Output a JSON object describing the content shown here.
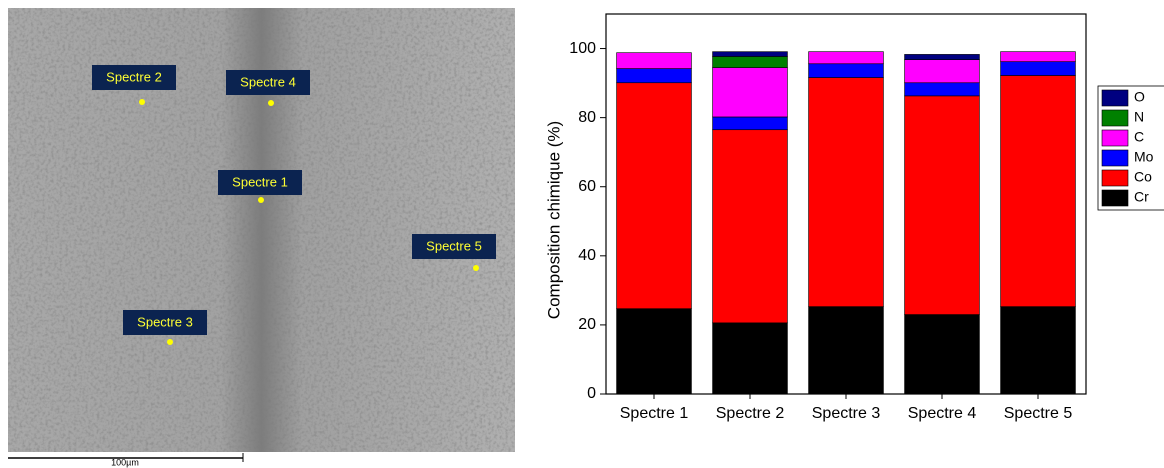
{
  "image": {
    "labels": [
      "Spectre 1",
      "Spectre 2",
      "Spectre 3",
      "Spectre 4",
      "Spectre 5"
    ],
    "scale_bar": "100µm"
  },
  "chart_data": {
    "type": "stacked_bar",
    "y_label": "Composition chimique (%)",
    "categories": [
      "Spectre 1",
      "Spectre 2",
      "Spectre 3",
      "Spectre 4",
      "Spectre 5"
    ],
    "series": [
      {
        "name": "Cr",
        "color": "#000000",
        "values": [
          24.7,
          20.6,
          25.3,
          23.0,
          25.3
        ]
      },
      {
        "name": "Co",
        "color": "#ff0000",
        "values": [
          65.4,
          55.9,
          66.3,
          63.3,
          66.9
        ]
      },
      {
        "name": "Mo",
        "color": "#0000ff",
        "values": [
          4.1,
          3.7,
          4.0,
          3.8,
          4.0
        ]
      },
      {
        "name": "C",
        "color": "#ff00ff",
        "values": [
          4.6,
          14.3,
          3.5,
          6.7,
          2.9
        ]
      },
      {
        "name": "N",
        "color": "#008000",
        "values": [
          0,
          3.2,
          0,
          0,
          0
        ]
      },
      {
        "name": "O",
        "color": "#000080",
        "values": [
          0,
          1.4,
          0,
          1.5,
          0
        ]
      }
    ],
    "ylim": [
      0,
      110
    ],
    "yticks": [
      0,
      20,
      40,
      60,
      80,
      100
    ]
  }
}
